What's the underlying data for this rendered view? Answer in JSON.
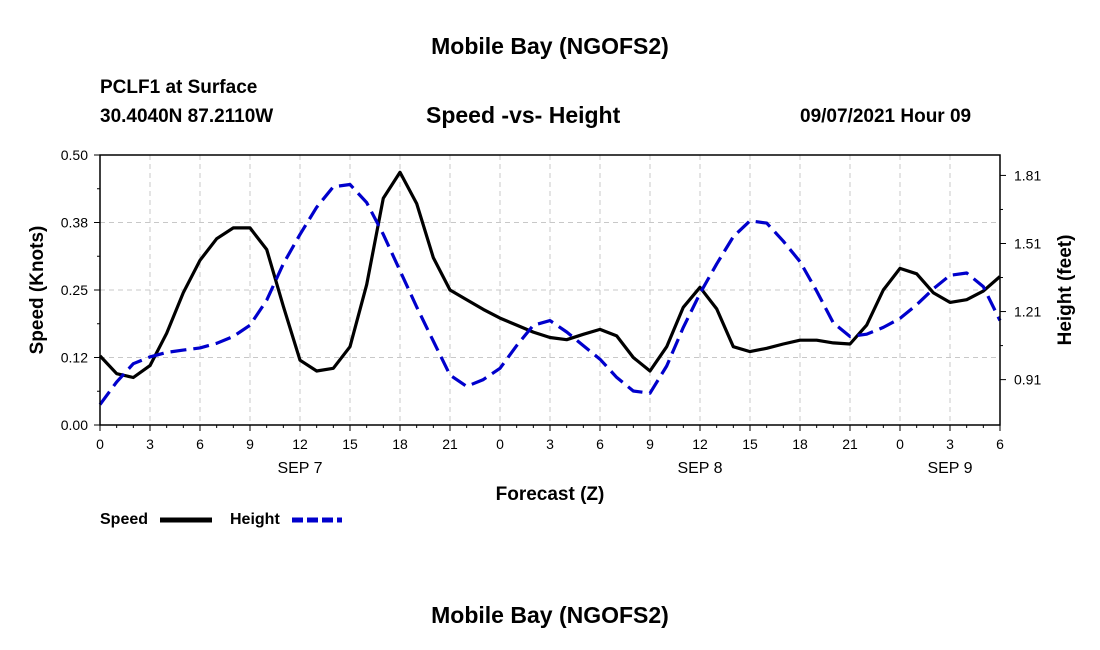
{
  "header": {
    "title": "Mobile Bay (NGOFS2)",
    "station": "PCLF1 at Surface",
    "coords": "30.4040N  87.2110W",
    "subtitle": "Speed -vs- Height",
    "datetime": "09/07/2021 Hour 09"
  },
  "footer": {
    "title": "Mobile Bay (NGOFS2)"
  },
  "colors": {
    "speed": "#000000",
    "height": "#0000cc",
    "grid": "#c8c8c8"
  },
  "chart_data": {
    "type": "line",
    "title": "Speed -vs- Height",
    "xlabel": "Forecast (Z)",
    "ylabel": "Speed (Knots)",
    "y2label": "Height (feet)",
    "x_range": [
      0,
      54
    ],
    "ylim": [
      0.0,
      0.5
    ],
    "y2lim": [
      0.71,
      1.9
    ],
    "xticks": [
      {
        "x": 0,
        "label": "0"
      },
      {
        "x": 3,
        "label": "3"
      },
      {
        "x": 6,
        "label": "6"
      },
      {
        "x": 9,
        "label": "9"
      },
      {
        "x": 12,
        "label": "12"
      },
      {
        "x": 15,
        "label": "15"
      },
      {
        "x": 18,
        "label": "18"
      },
      {
        "x": 21,
        "label": "21"
      },
      {
        "x": 24,
        "label": "0"
      },
      {
        "x": 27,
        "label": "3"
      },
      {
        "x": 30,
        "label": "6"
      },
      {
        "x": 33,
        "label": "9"
      },
      {
        "x": 36,
        "label": "12"
      },
      {
        "x": 39,
        "label": "15"
      },
      {
        "x": 42,
        "label": "18"
      },
      {
        "x": 45,
        "label": "21"
      },
      {
        "x": 48,
        "label": "0"
      },
      {
        "x": 51,
        "label": "3"
      },
      {
        "x": 54,
        "label": "6"
      }
    ],
    "date_labels": [
      {
        "x": 12,
        "label": "SEP 7"
      },
      {
        "x": 36,
        "label": "SEP 8"
      },
      {
        "x": 51,
        "label": "SEP 9"
      }
    ],
    "yticks": [
      {
        "v": 0.0,
        "label": "0.00"
      },
      {
        "v": 0.125,
        "label": "0.12"
      },
      {
        "v": 0.25,
        "label": "0.25"
      },
      {
        "v": 0.375,
        "label": "0.38"
      },
      {
        "v": 0.5,
        "label": "0.50"
      }
    ],
    "y2ticks": [
      {
        "v": 0.91,
        "label": "0.91"
      },
      {
        "v": 1.21,
        "label": "1.21"
      },
      {
        "v": 1.51,
        "label": "1.51"
      },
      {
        "v": 1.81,
        "label": "1.81"
      }
    ],
    "grid": true,
    "legend": {
      "position": "bottom-left"
    },
    "series": [
      {
        "name": "Speed",
        "axis": "left",
        "style": "solid",
        "x": [
          0,
          1,
          2,
          3,
          4,
          5,
          6,
          7,
          8,
          9,
          10,
          11,
          12,
          13,
          14,
          15,
          16,
          17,
          18,
          19,
          20,
          21,
          22,
          23,
          24,
          25,
          26,
          27,
          28,
          29,
          30,
          31,
          32,
          33,
          34,
          35,
          36,
          37,
          38,
          39,
          40,
          41,
          42,
          43,
          44,
          45,
          46,
          47,
          48,
          49,
          50,
          51,
          52,
          53,
          54
        ],
        "values": [
          0.128,
          0.095,
          0.088,
          0.11,
          0.17,
          0.245,
          0.305,
          0.345,
          0.365,
          0.365,
          0.325,
          0.22,
          0.12,
          0.1,
          0.105,
          0.145,
          0.26,
          0.42,
          0.468,
          0.41,
          0.31,
          0.25,
          0.232,
          0.214,
          0.198,
          0.185,
          0.172,
          0.162,
          0.158,
          0.168,
          0.177,
          0.165,
          0.125,
          0.1,
          0.145,
          0.218,
          0.255,
          0.215,
          0.145,
          0.136,
          0.142,
          0.15,
          0.157,
          0.157,
          0.152,
          0.15,
          0.185,
          0.25,
          0.29,
          0.28,
          0.245,
          0.227,
          0.232,
          0.248,
          0.275
        ]
      },
      {
        "name": "Height",
        "axis": "right",
        "style": "dashed",
        "x": [
          0,
          1,
          2,
          3,
          4,
          5,
          6,
          7,
          8,
          9,
          10,
          11,
          12,
          13,
          14,
          15,
          16,
          17,
          18,
          19,
          20,
          21,
          22,
          23,
          24,
          25,
          26,
          27,
          28,
          29,
          30,
          31,
          32,
          33,
          34,
          35,
          36,
          37,
          38,
          39,
          40,
          41,
          42,
          43,
          44,
          45,
          46,
          47,
          48,
          49,
          50,
          51,
          52,
          53,
          54
        ],
        "values": [
          0.8,
          0.9,
          0.98,
          1.01,
          1.03,
          1.04,
          1.05,
          1.07,
          1.1,
          1.15,
          1.26,
          1.42,
          1.55,
          1.67,
          1.76,
          1.77,
          1.69,
          1.55,
          1.39,
          1.23,
          1.08,
          0.93,
          0.88,
          0.91,
          0.96,
          1.06,
          1.15,
          1.17,
          1.12,
          1.06,
          1.0,
          0.92,
          0.86,
          0.85,
          0.97,
          1.14,
          1.29,
          1.42,
          1.54,
          1.61,
          1.6,
          1.52,
          1.43,
          1.3,
          1.16,
          1.1,
          1.11,
          1.14,
          1.18,
          1.24,
          1.31,
          1.37,
          1.38,
          1.32,
          1.17
        ]
      }
    ]
  }
}
